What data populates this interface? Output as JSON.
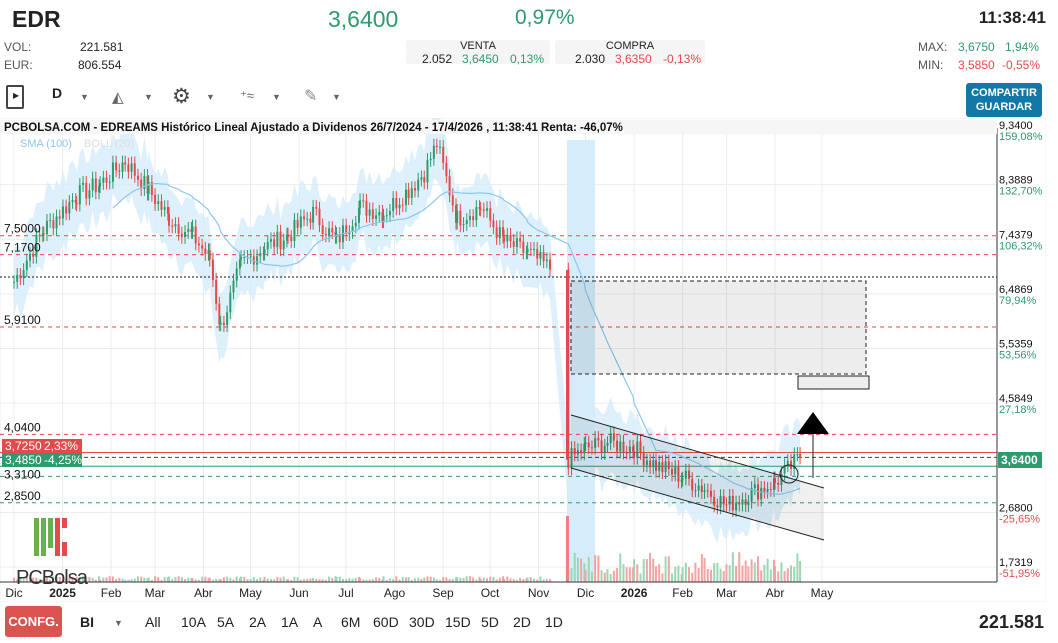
{
  "header": {
    "ticker": "EDR",
    "price": "3,6400",
    "change": "0,97%",
    "time": "11:38:41",
    "vol_label": "VOL:",
    "vol": "221.581",
    "eur_label": "EUR:",
    "eur": "806.554",
    "venta": {
      "label": "VENTA",
      "qty": "2.052",
      "price": "3,6450",
      "pct": "0,13%"
    },
    "compra": {
      "label": "COMPRA",
      "qty": "2.030",
      "price": "3,6350",
      "pct": "-0,13%"
    },
    "max_label": "MAX:",
    "max": "3,6750",
    "max_pct": "1,94%",
    "min_label": "MIN:",
    "min": "3,5850",
    "min_pct": "-0,55%"
  },
  "toolbar": {
    "period": "D",
    "share_1": "COMPARTIR",
    "share_2": "GUARDAR",
    "icons": [
      "sidebar-toggle-icon",
      "area-chart-icon",
      "gear-icon",
      "indicators-icon",
      "drawing-pencil-icon"
    ]
  },
  "chart": {
    "title": "PCBOLSA.COM - EDREAMS Histórico Lineal Ajustado a Dividenos 26/7/2024 - 17/4/2026 , 11:38:41 Renta: -46,07%",
    "legend_sma": "SMA (100)",
    "legend_boll": "BOLL (20)",
    "logo": "PCBolsa",
    "colors": {
      "up": "#2e9b6c",
      "down": "#e24b4b",
      "sma": "#8cc8ee",
      "band": "#d6ecfa"
    },
    "right_axis": [
      {
        "v": "9,3400",
        "p": "159,08%"
      },
      {
        "v": "8,3889",
        "p": "132,70%"
      },
      {
        "v": "7,4379",
        "p": "106,32%"
      },
      {
        "v": "6,4869",
        "p": "79,94%"
      },
      {
        "v": "5,5359",
        "p": "53,56%"
      },
      {
        "v": "4,5849",
        "p": "27,18%"
      },
      {
        "v": "2,6800",
        "p": "-25,65%"
      },
      {
        "v": "1,7319",
        "p": "-51,95%"
      }
    ],
    "current_price": "3,6400",
    "levels_left": [
      "7,5000",
      "7,1700",
      "5,9100",
      "4,0400",
      "3,3100",
      "2,8500"
    ],
    "tag_high": {
      "v": "3,7250",
      "p": "2,33%"
    },
    "tag_low": {
      "v": "3,4850",
      "p": "-4,25%"
    },
    "x_labels": [
      "Dic",
      "2025",
      "Feb",
      "Mar",
      "Abr",
      "May",
      "Jun",
      "Jul",
      "Ago",
      "Sep",
      "Oct",
      "Nov",
      "Dic",
      "2026",
      "Feb",
      "Mar",
      "Abr",
      "May"
    ]
  },
  "chart_data": {
    "type": "candlestick",
    "ylim": [
      1.7319,
      9.34
    ],
    "x": [
      "2024-12-01",
      "2024-12-20",
      "2025-01-10",
      "2025-01-25",
      "2025-02-10",
      "2025-02-25",
      "2025-03-10",
      "2025-03-25",
      "2025-04-05",
      "2025-04-12",
      "2025-04-25",
      "2025-05-10",
      "2025-05-25",
      "2025-06-10",
      "2025-06-25",
      "2025-07-10",
      "2025-07-25",
      "2025-08-10",
      "2025-08-20",
      "2025-08-28",
      "2025-09-10",
      "2025-09-25",
      "2025-10-10",
      "2025-10-25",
      "2025-11-10",
      "2025-11-20",
      "2025-12-01",
      "2025-12-15",
      "2026-01-01",
      "2026-01-15",
      "2026-02-01",
      "2026-02-15",
      "2026-03-01",
      "2026-03-15",
      "2026-04-01",
      "2026-04-17"
    ],
    "close": [
      6.7,
      7.6,
      8.2,
      8.4,
      8.8,
      8.3,
      7.8,
      7.5,
      7.1,
      5.9,
      7.0,
      7.3,
      7.5,
      7.9,
      7.4,
      8.0,
      7.9,
      8.3,
      8.6,
      9.1,
      7.8,
      8.0,
      7.4,
      7.2,
      6.9,
      3.6,
      3.8,
      3.9,
      3.8,
      3.5,
      3.3,
      3.1,
      2.8,
      3.0,
      3.2,
      3.64
    ]
  },
  "bottom": {
    "config": "CONFG.",
    "indicator": "BI",
    "ranges": [
      "All",
      "10A",
      "5A",
      "2A",
      "1A",
      "A",
      "6M",
      "60D",
      "30D",
      "15D",
      "5D",
      "2D",
      "1D"
    ],
    "volume": "221.581"
  }
}
